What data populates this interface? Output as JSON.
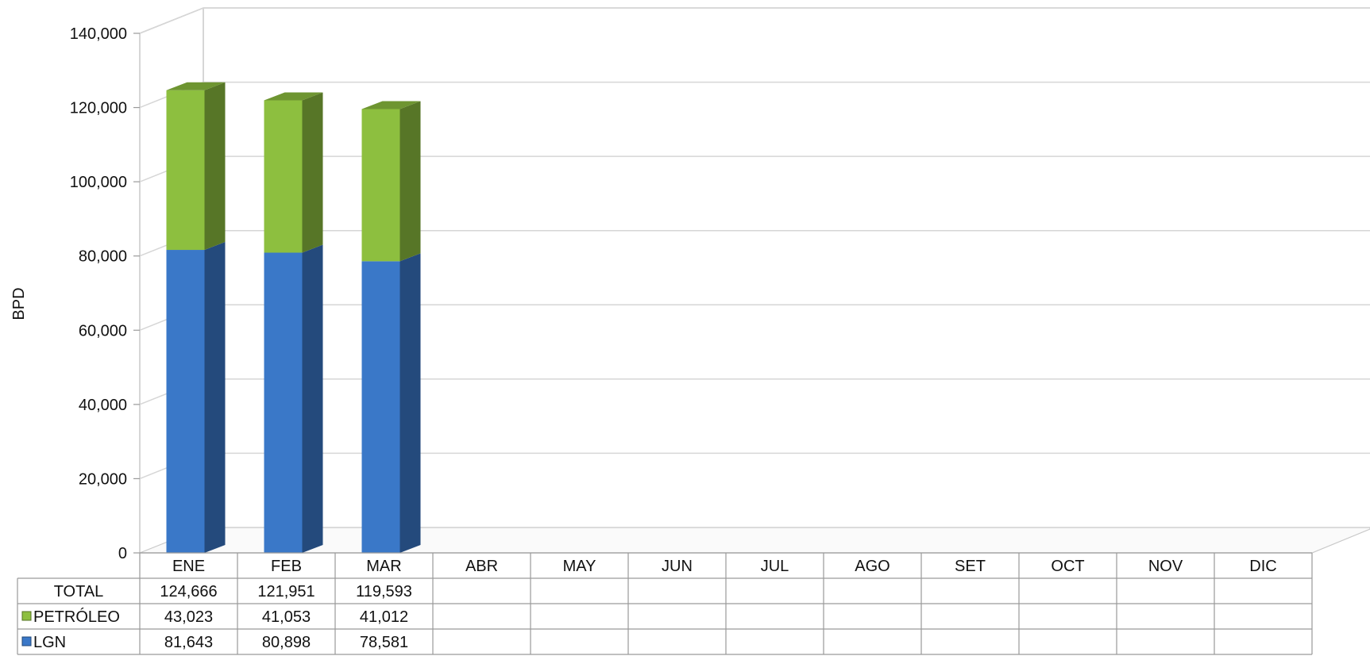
{
  "chart_data": {
    "type": "bar",
    "stacked": true,
    "three_d": true,
    "title": "",
    "xlabel": "",
    "ylabel": "BPD",
    "ylim": [
      0,
      140000
    ],
    "y_ticks": [
      "0",
      "20,000",
      "40,000",
      "60,000",
      "80,000",
      "100,000",
      "120,000",
      "140,000"
    ],
    "grid": true,
    "legend": "data-table",
    "categories": [
      "ENE",
      "FEB",
      "MAR",
      "ABR",
      "MAY",
      "JUN",
      "JUL",
      "AGO",
      "SET",
      "OCT",
      "NOV",
      "DIC"
    ],
    "series": [
      {
        "name": "LGN",
        "color": "#3a78c8",
        "values": [
          81643,
          80898,
          78581,
          null,
          null,
          null,
          null,
          null,
          null,
          null,
          null,
          null
        ],
        "labels": [
          "81,643",
          "80,898",
          "78,581",
          "",
          "",
          "",
          "",
          "",
          "",
          "",
          "",
          ""
        ]
      },
      {
        "name": "PETRÓLEO",
        "color": "#8dbf3f",
        "values": [
          43023,
          41053,
          41012,
          null,
          null,
          null,
          null,
          null,
          null,
          null,
          null,
          null
        ],
        "labels": [
          "43,023",
          "41,053",
          "41,012",
          "",
          "",
          "",
          "",
          "",
          "",
          "",
          "",
          ""
        ]
      }
    ],
    "total": {
      "name": "TOTAL",
      "labels": [
        "124,666",
        "121,951",
        "119,593",
        "",
        "",
        "",
        "",
        "",
        "",
        "",
        "",
        ""
      ]
    }
  }
}
